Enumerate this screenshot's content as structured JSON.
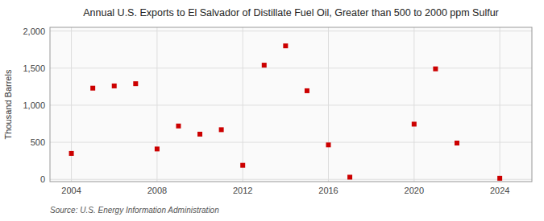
{
  "chart_data": {
    "type": "scatter",
    "title": "Annual U.S. Exports to El Salvador of Distillate Fuel Oil, Greater than 500 to 2000 ppm Sulfur",
    "ylabel": "Thousand Barrels",
    "source": "Source: U.S. Energy Information Administration",
    "x": [
      2004,
      2005,
      2006,
      2007,
      2008,
      2009,
      2010,
      2011,
      2012,
      2013,
      2014,
      2015,
      2016,
      2017,
      2020,
      2021,
      2022,
      2024
    ],
    "values": [
      350,
      1230,
      1260,
      1290,
      410,
      720,
      610,
      670,
      190,
      1540,
      1800,
      1195,
      465,
      30,
      745,
      1490,
      490,
      15
    ],
    "color": "#cc0000",
    "marker": "square",
    "xlim": [
      2003.0,
      2025.5
    ],
    "ylim": [
      -30,
      2050
    ],
    "xticks": [
      2004,
      2008,
      2012,
      2016,
      2020,
      2024
    ],
    "yticks": [
      0,
      500,
      {
        "value": 1000,
        "label": "1,000"
      },
      {
        "value": 1500,
        "label": "1,500"
      },
      {
        "value": 2000,
        "label": "2,000"
      }
    ],
    "grid": true
  }
}
